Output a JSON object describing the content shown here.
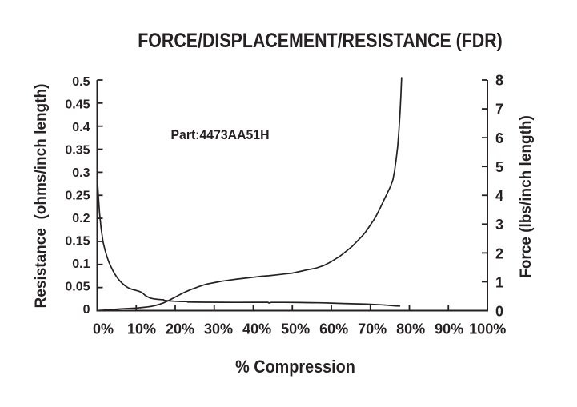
{
  "chart_data": {
    "type": "line",
    "title": "FORCE/DISPLACEMENT/RESISTANCE (FDR)",
    "annotation": "Part:4473AA51H",
    "xlabel": "% Compression",
    "x_range": [
      0,
      100
    ],
    "x_ticks": [
      "0%",
      "10%",
      "20%",
      "30%",
      "40%",
      "50%",
      "60%",
      "70%",
      "80%",
      "90%",
      "100%"
    ],
    "grid": false,
    "legend": "none",
    "ink_color": "#252021",
    "axes": {
      "left": {
        "label": "Resistance  (ohms/inch length)",
        "range": [
          0,
          0.5
        ],
        "tick_step": 0.05,
        "ticks": [
          "0",
          "0.05",
          "0.1",
          "0.15",
          "0.2",
          "0.25",
          "0.3",
          "0.35",
          "0.4",
          "0.45",
          "0.5"
        ]
      },
      "right": {
        "label": "Force (lbs/inch length)",
        "range": [
          0,
          8
        ],
        "tick_step": 1,
        "ticks": [
          "0",
          "1",
          "2",
          "3",
          "4",
          "5",
          "6",
          "7",
          "8"
        ]
      }
    },
    "series": [
      {
        "name": "Resistance",
        "axis": "left",
        "points": [
          [
            0,
            0.29
          ],
          [
            0.3,
            0.248
          ],
          [
            0.6,
            0.212
          ],
          [
            1.0,
            0.178
          ],
          [
            1.5,
            0.149
          ],
          [
            2.0,
            0.131
          ],
          [
            2.5,
            0.117
          ],
          [
            3.0,
            0.105
          ],
          [
            3.5,
            0.0955
          ],
          [
            4.0,
            0.087
          ],
          [
            4.5,
            0.0795
          ],
          [
            5.0,
            0.073
          ],
          [
            5.5,
            0.0675
          ],
          [
            6.0,
            0.0625
          ],
          [
            6.5,
            0.0585
          ],
          [
            7.0,
            0.055
          ],
          [
            7.5,
            0.0518
          ],
          [
            8.0,
            0.049
          ],
          [
            9.0,
            0.0458
          ],
          [
            10.0,
            0.0437
          ],
          [
            10.7,
            0.042
          ],
          [
            11.3,
            0.0398
          ],
          [
            11.8,
            0.037
          ],
          [
            12.3,
            0.033
          ],
          [
            12.9,
            0.03
          ],
          [
            13.6,
            0.0272
          ],
          [
            14.5,
            0.0255
          ],
          [
            15.5,
            0.0245
          ],
          [
            16.5,
            0.0238
          ],
          [
            17.0,
            0.0236
          ],
          [
            17.2,
            0.0222
          ],
          [
            18.5,
            0.021
          ],
          [
            20.0,
            0.0202
          ],
          [
            21.5,
            0.0198
          ],
          [
            23.0,
            0.0196
          ],
          [
            23.2,
            0.0186
          ],
          [
            25.0,
            0.0184
          ],
          [
            28.0,
            0.0182
          ],
          [
            32.0,
            0.018
          ],
          [
            36.0,
            0.0179
          ],
          [
            40.0,
            0.018
          ],
          [
            43.8,
            0.018
          ],
          [
            44.0,
            0.0165
          ],
          [
            44.6,
            0.0178
          ],
          [
            48.0,
            0.0178
          ],
          [
            52.0,
            0.0175
          ],
          [
            55.0,
            0.0172
          ],
          [
            56.5,
            0.017
          ],
          [
            58.0,
            0.0168
          ],
          [
            60.0,
            0.0163
          ],
          [
            63.0,
            0.0155
          ],
          [
            66.0,
            0.0147
          ],
          [
            69.0,
            0.014
          ],
          [
            71.0,
            0.0133
          ],
          [
            73.0,
            0.0125
          ],
          [
            75.0,
            0.0112
          ],
          [
            76.5,
            0.0102
          ],
          [
            77.5,
            0.0098
          ]
        ]
      },
      {
        "name": "Force",
        "axis": "right",
        "points": [
          [
            0,
            0
          ],
          [
            1,
            0.01
          ],
          [
            2,
            0.02
          ],
          [
            4,
            0.04
          ],
          [
            6,
            0.06
          ],
          [
            8,
            0.075
          ],
          [
            10,
            0.09
          ],
          [
            11,
            0.1
          ],
          [
            12,
            0.115
          ],
          [
            13,
            0.13
          ],
          [
            14,
            0.15
          ],
          [
            15,
            0.18
          ],
          [
            16,
            0.22
          ],
          [
            17,
            0.27
          ],
          [
            18,
            0.33
          ],
          [
            19,
            0.4
          ],
          [
            20,
            0.47
          ],
          [
            21,
            0.54
          ],
          [
            22,
            0.61
          ],
          [
            23,
            0.67
          ],
          [
            24,
            0.73
          ],
          [
            25,
            0.78
          ],
          [
            26,
            0.83
          ],
          [
            27,
            0.875
          ],
          [
            28,
            0.915
          ],
          [
            29,
            0.945
          ],
          [
            30,
            0.97
          ],
          [
            32,
            1.02
          ],
          [
            34,
            1.06
          ],
          [
            36,
            1.095
          ],
          [
            38,
            1.125
          ],
          [
            40,
            1.155
          ],
          [
            42,
            1.19
          ],
          [
            44,
            1.21
          ],
          [
            46,
            1.24
          ],
          [
            48,
            1.27
          ],
          [
            50,
            1.3
          ],
          [
            52,
            1.36
          ],
          [
            54,
            1.42
          ],
          [
            56,
            1.47
          ],
          [
            58,
            1.56
          ],
          [
            60,
            1.7
          ],
          [
            61.3,
            1.81
          ],
          [
            62,
            1.87
          ],
          [
            63,
            1.97
          ],
          [
            64,
            2.08
          ],
          [
            65.3,
            2.22
          ],
          [
            66,
            2.32
          ],
          [
            67,
            2.46
          ],
          [
            68,
            2.6
          ],
          [
            68.8,
            2.73
          ],
          [
            70,
            2.97
          ],
          [
            71,
            3.17
          ],
          [
            71.5,
            3.29
          ],
          [
            72.5,
            3.55
          ],
          [
            73.5,
            3.84
          ],
          [
            74.5,
            4.12
          ],
          [
            75.2,
            4.32
          ],
          [
            75.8,
            4.55
          ],
          [
            76.2,
            4.85
          ],
          [
            76.6,
            5.23
          ],
          [
            77.0,
            5.7
          ],
          [
            77.3,
            6.2
          ],
          [
            77.6,
            6.85
          ],
          [
            77.8,
            7.4
          ],
          [
            78.0,
            8.08
          ]
        ]
      }
    ]
  }
}
